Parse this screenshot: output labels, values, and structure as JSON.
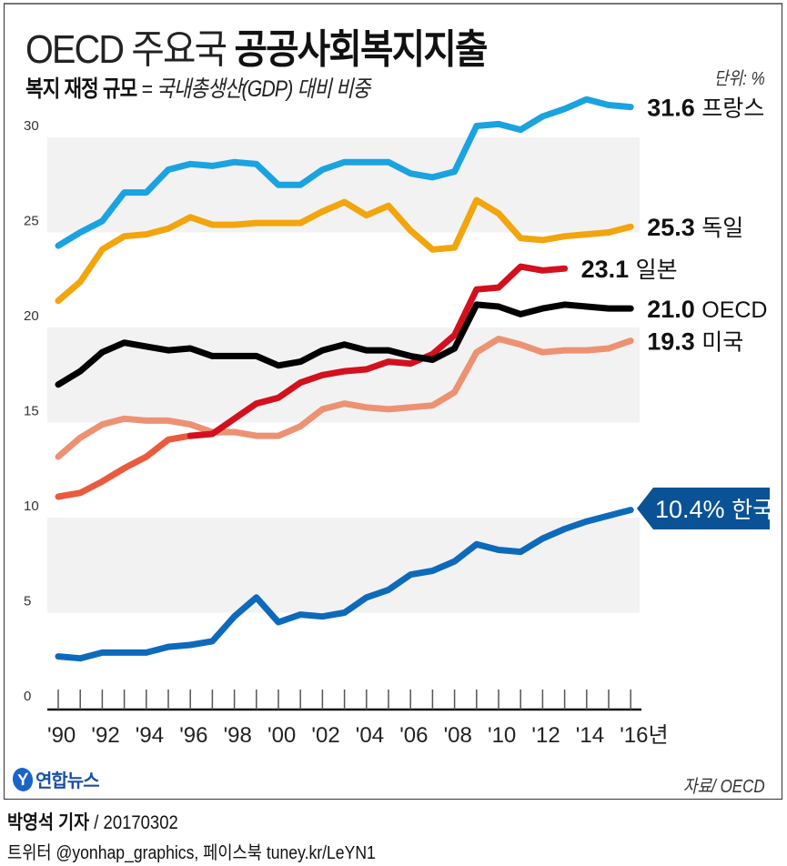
{
  "header": {
    "title_light": "OECD 주요국",
    "title_bold": "공공사회복지지출",
    "subtitle_bold": "복지 재정 규모",
    "subtitle_rest": " = 국내총생산(GDP) 대비 비중",
    "unit": "단위: %"
  },
  "footer": {
    "logo_mark": "Y",
    "logo_text": "연합뉴스",
    "source": "자료/ OECD",
    "reporter": "박영석 기자",
    "date": " / 20170302",
    "social": "트위터 @yonhap_graphics, 페이스북 tuney.kr/LeYN1"
  },
  "colors": {
    "france": "#1aa3e0",
    "germany": "#f2a50c",
    "japan_early": "#ea5a3f",
    "japan": "#d3101e",
    "oecd": "#000000",
    "usa": "#ec9272",
    "korea": "#0d6abb",
    "korea_label_bg": "#0a5296",
    "band": "#f2f2f2"
  },
  "chart_data": {
    "type": "line",
    "title": "OECD 주요국 공공사회복지지출",
    "subtitle": "복지 재정 규모 = 국내총생산(GDP) 대비 비중",
    "xlabel": "년",
    "ylabel": "단위: %",
    "ylim": [
      0,
      30
    ],
    "yticks": [
      0,
      5,
      10,
      15,
      20,
      25,
      30
    ],
    "x": [
      1990,
      1991,
      1992,
      1993,
      1994,
      1995,
      1996,
      1997,
      1998,
      1999,
      2000,
      2001,
      2002,
      2003,
      2004,
      2005,
      2006,
      2007,
      2008,
      2009,
      2010,
      2011,
      2012,
      2013,
      2014,
      2015,
      2016
    ],
    "xtick_labels": [
      "'90",
      "'92",
      "'94",
      "'96",
      "'98",
      "'00",
      "'02",
      "'04",
      "'06",
      "'08",
      "'10",
      "'12",
      "'14",
      "'16년"
    ],
    "grid": "alternating horizontal bands",
    "series": [
      {
        "key": "france",
        "name": "프랑스",
        "end_label": "31.6",
        "values": [
          24.3,
          25.0,
          25.6,
          27.1,
          27.1,
          28.3,
          28.6,
          28.5,
          28.7,
          28.6,
          27.5,
          27.5,
          28.3,
          28.7,
          28.7,
          28.7,
          28.1,
          27.9,
          28.2,
          30.6,
          30.7,
          30.4,
          31.1,
          31.5,
          32.0,
          31.7,
          31.6
        ]
      },
      {
        "key": "germany",
        "name": "독일",
        "end_label": "25.3",
        "values": [
          21.4,
          22.4,
          24.1,
          24.8,
          24.9,
          25.2,
          25.8,
          25.4,
          25.4,
          25.5,
          25.5,
          25.5,
          26.1,
          26.6,
          25.9,
          26.4,
          25.1,
          24.1,
          24.2,
          26.7,
          26.0,
          24.7,
          24.6,
          24.8,
          24.9,
          25.0,
          25.3
        ]
      },
      {
        "key": "japan",
        "name": "일본",
        "end_label": "23.1",
        "values": [
          11.1,
          11.3,
          11.9,
          12.6,
          13.2,
          14.1,
          14.3,
          14.4,
          15.2,
          16.0,
          16.3,
          17.1,
          17.5,
          17.7,
          17.8,
          18.2,
          18.1,
          18.6,
          19.6,
          22.0,
          22.1,
          23.2,
          23.0,
          23.1,
          null,
          null,
          null
        ]
      },
      {
        "key": "oecd",
        "name": "OECD",
        "end_label": "21.0",
        "values": [
          17.0,
          17.7,
          18.7,
          19.2,
          19.0,
          18.8,
          18.9,
          18.5,
          18.5,
          18.5,
          18.0,
          18.2,
          18.8,
          19.1,
          18.8,
          18.8,
          18.5,
          18.3,
          18.9,
          21.2,
          21.1,
          20.7,
          21.0,
          21.2,
          21.1,
          21.0,
          21.0
        ]
      },
      {
        "key": "usa",
        "name": "미국",
        "end_label": "19.3",
        "values": [
          13.2,
          14.2,
          14.9,
          15.2,
          15.1,
          15.1,
          14.9,
          14.5,
          14.5,
          14.3,
          14.3,
          14.8,
          15.7,
          16.0,
          15.8,
          15.7,
          15.8,
          15.9,
          16.6,
          18.7,
          19.4,
          19.1,
          18.7,
          18.8,
          18.8,
          18.9,
          19.3
        ]
      },
      {
        "key": "korea",
        "name": "한국",
        "end_label": "10.4%",
        "values": [
          2.7,
          2.6,
          2.9,
          2.9,
          2.9,
          3.2,
          3.3,
          3.5,
          4.8,
          5.8,
          4.5,
          4.9,
          4.8,
          5.0,
          5.8,
          6.2,
          7.0,
          7.2,
          7.7,
          8.6,
          8.3,
          8.2,
          8.9,
          9.4,
          9.8,
          10.1,
          10.4
        ]
      }
    ]
  }
}
